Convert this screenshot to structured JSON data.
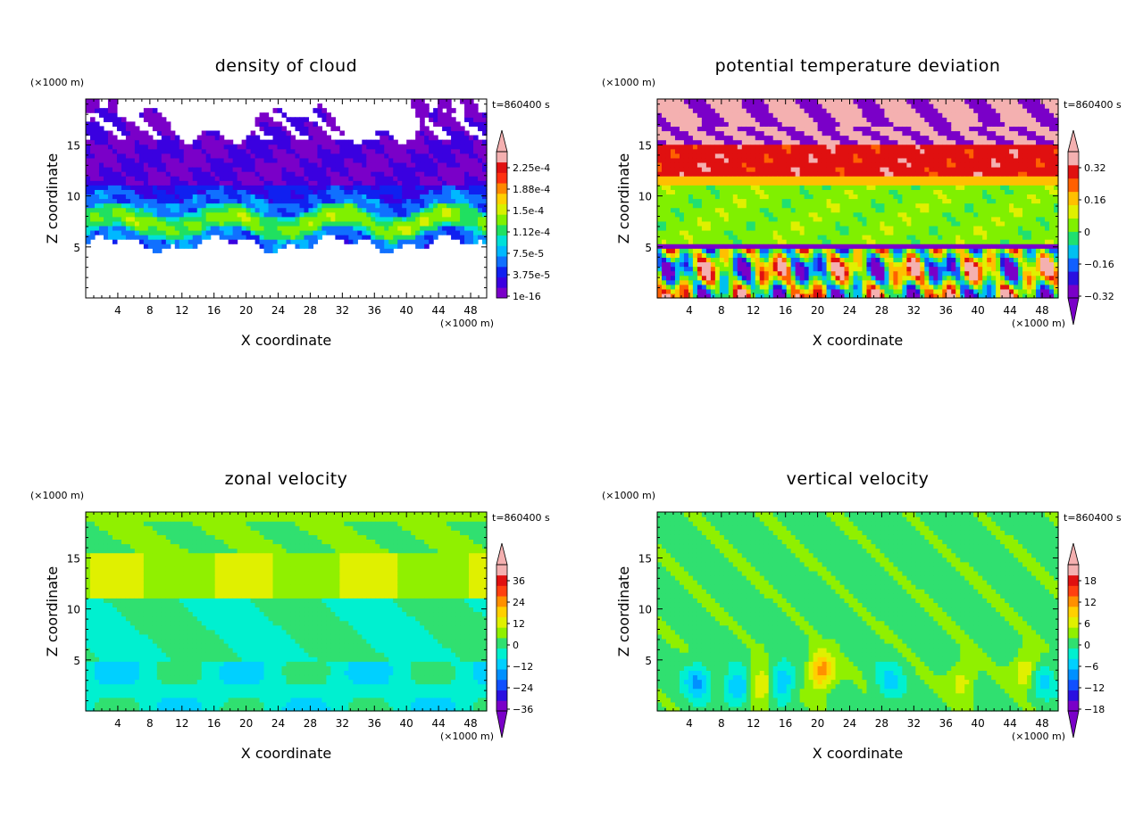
{
  "figure": {
    "x_unit": "(×1000 m)",
    "y_unit": "(×1000 m)",
    "time_label": "t=860400 s"
  },
  "chart_data": [
    {
      "type": "heatmap",
      "id": "cloud",
      "title": "density of cloud",
      "xlabel": "X coordinate",
      "ylabel": "Z coordinate",
      "xlim": [
        0,
        50
      ],
      "ylim": [
        0,
        19.5
      ],
      "xticks": [
        4,
        8,
        12,
        16,
        20,
        24,
        28,
        32,
        36,
        40,
        44,
        48
      ],
      "yticks": [
        5,
        10,
        15
      ],
      "colorbar": {
        "labels": [
          "2.25e-4",
          "1.88e-4",
          "1.5e-4",
          "1.12e-4",
          "7.5e-5",
          "3.75e-5",
          "1e-16"
        ],
        "colors": [
          "#7a00c8",
          "#3a00e0",
          "#1020f0",
          "#1070ff",
          "#00b8ff",
          "#00e0d8",
          "#20e060",
          "#80f000",
          "#d8f000",
          "#ffd000",
          "#ff8800",
          "#ff3010",
          "#e01010",
          "#f4b0b0"
        ],
        "arrow_top": true,
        "arrow_bottom": false
      }
    },
    {
      "type": "heatmap",
      "id": "ptd",
      "title": "potential temperature deviation",
      "xlabel": "X coordinate",
      "ylabel": "Z coordinate",
      "xlim": [
        0,
        50
      ],
      "ylim": [
        0,
        19.5
      ],
      "xticks": [
        4,
        8,
        12,
        16,
        20,
        24,
        28,
        32,
        36,
        40,
        44,
        48
      ],
      "yticks": [
        5,
        10,
        15
      ],
      "colorbar": {
        "labels": [
          "0.32",
          "0.16",
          "0",
          "−0.16",
          "−0.32"
        ],
        "colors": [
          "#7a00c8",
          "#2a10e0",
          "#1060ff",
          "#00c0f0",
          "#20e070",
          "#80f000",
          "#e0f000",
          "#ffc000",
          "#ff6000",
          "#e01010",
          "#f4b0b0"
        ],
        "arrow_top": true,
        "arrow_bottom": true
      }
    },
    {
      "type": "heatmap",
      "id": "zonal",
      "title": "zonal velocity",
      "xlabel": "X coordinate",
      "ylabel": "Z coordinate",
      "xlim": [
        0,
        50
      ],
      "ylim": [
        0,
        19.5
      ],
      "xticks": [
        4,
        8,
        12,
        16,
        20,
        24,
        28,
        32,
        36,
        40,
        44,
        48
      ],
      "yticks": [
        5,
        10,
        15
      ],
      "colorbar": {
        "labels": [
          "36",
          "24",
          "12",
          "0",
          "−12",
          "−24",
          "−36"
        ],
        "colors": [
          "#7a00c8",
          "#2a10e0",
          "#1050ff",
          "#0090ff",
          "#00d0ff",
          "#00f0d0",
          "#30e070",
          "#90f000",
          "#e0f000",
          "#ffd000",
          "#ff9000",
          "#ff4010",
          "#e01010",
          "#f4b0b0"
        ],
        "arrow_top": true,
        "arrow_bottom": true
      }
    },
    {
      "type": "heatmap",
      "id": "vertical",
      "title": "vertical velocity",
      "xlabel": "X coordinate",
      "ylabel": "Z coordinate",
      "xlim": [
        0,
        50
      ],
      "ylim": [
        0,
        19.5
      ],
      "xticks": [
        4,
        8,
        12,
        16,
        20,
        24,
        28,
        32,
        36,
        40,
        44,
        48
      ],
      "yticks": [
        5,
        10,
        15
      ],
      "colorbar": {
        "labels": [
          "18",
          "12",
          "6",
          "0",
          "−6",
          "−12",
          "−18"
        ],
        "colors": [
          "#7a00c8",
          "#2a10e0",
          "#1050ff",
          "#0090ff",
          "#00d0ff",
          "#00f0d0",
          "#30e070",
          "#90f000",
          "#e0f000",
          "#ffd000",
          "#ff9000",
          "#ff4010",
          "#e01010",
          "#f4b0b0"
        ],
        "arrow_top": true,
        "arrow_bottom": true
      }
    }
  ]
}
